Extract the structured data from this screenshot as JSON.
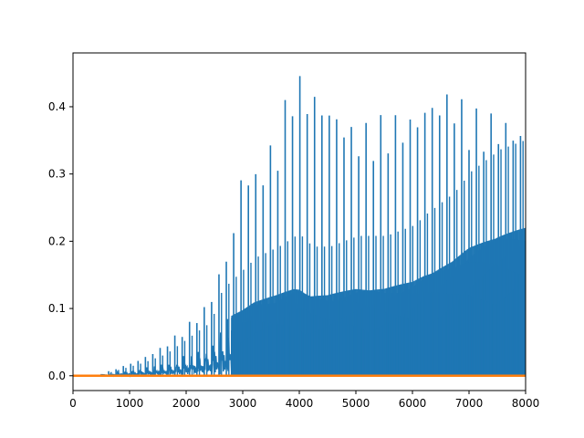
{
  "chart_data": {
    "type": "line",
    "title": "",
    "xlabel": "",
    "ylabel": "",
    "xlim": [
      0,
      8000
    ],
    "ylim": [
      -0.022,
      0.48
    ],
    "grid": false,
    "legend": "none",
    "x_ticks": [
      0,
      1000,
      2000,
      3000,
      4000,
      5000,
      6000,
      7000,
      8000
    ],
    "x_tick_labels": [
      "0",
      "1000",
      "2000",
      "3000",
      "4000",
      "5000",
      "6000",
      "7000",
      "8000"
    ],
    "y_ticks": [
      0.0,
      0.1,
      0.2,
      0.3,
      0.4
    ],
    "y_tick_labels": [
      "0.0",
      "0.1",
      "0.2",
      "0.3",
      "0.4"
    ],
    "series": [
      {
        "color": "#1f77b4",
        "description_points": {
          "x": [
            0,
            400,
            800,
            1200,
            1600,
            2000,
            2400,
            2600,
            2800,
            3000,
            3200,
            3600,
            3900,
            4000,
            4200,
            4500,
            5000,
            5500,
            6000,
            6200,
            6700,
            7000,
            7500,
            8000
          ],
          "y_peak": [
            0.0,
            0.0,
            0.012,
            0.025,
            0.045,
            0.075,
            0.11,
            0.16,
            0.2,
            0.32,
            0.3,
            0.36,
            0.46,
            0.45,
            0.43,
            0.41,
            0.37,
            0.39,
            0.39,
            0.41,
            0.43,
            0.4,
            0.39,
            0.37
          ],
          "y_body": [
            0.0,
            0.0,
            0.006,
            0.012,
            0.02,
            0.035,
            0.05,
            0.08,
            0.09,
            0.1,
            0.11,
            0.12,
            0.13,
            0.13,
            0.12,
            0.12,
            0.13,
            0.13,
            0.14,
            0.15,
            0.17,
            0.19,
            0.21,
            0.22
          ]
        }
      },
      {
        "color": "#ff7f0e",
        "x": [
          0,
          8000
        ],
        "y": [
          0.0,
          0.0
        ]
      }
    ]
  }
}
